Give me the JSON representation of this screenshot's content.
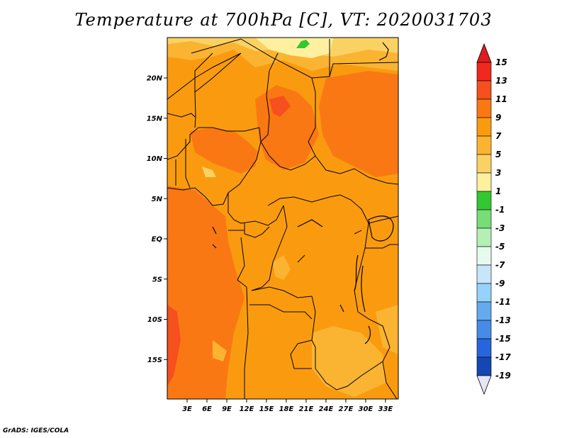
{
  "title": "Temperature at 700hPa [C], VT: 2020031703",
  "footer": "GrADS: IGES/COLA",
  "map": {
    "y_ticks": [
      {
        "label": "20N",
        "lat": 20
      },
      {
        "label": "15N",
        "lat": 15
      },
      {
        "label": "10N",
        "lat": 10
      },
      {
        "label": "5N",
        "lat": 5
      },
      {
        "label": "EQ",
        "lat": 0
      },
      {
        "label": "5S",
        "lat": -5
      },
      {
        "label": "10S",
        "lat": -10
      },
      {
        "label": "15S",
        "lat": -15
      }
    ],
    "x_ticks": [
      {
        "label": "3E",
        "lon": 3
      },
      {
        "label": "6E",
        "lon": 6
      },
      {
        "label": "9E",
        "lon": 9
      },
      {
        "label": "12E",
        "lon": 12
      },
      {
        "label": "15E",
        "lon": 15
      },
      {
        "label": "18E",
        "lon": 18
      },
      {
        "label": "21E",
        "lon": 21
      },
      {
        "label": "24E",
        "lon": 24
      },
      {
        "label": "27E",
        "lon": 27
      },
      {
        "label": "30E",
        "lon": 30
      },
      {
        "label": "33E",
        "lon": 33
      }
    ]
  },
  "colorbar": {
    "levels": [
      {
        "label": "15",
        "color": "#f0281e"
      },
      {
        "label": "13",
        "color": "#f5501e"
      },
      {
        "label": "11",
        "color": "#fa7814"
      },
      {
        "label": "9",
        "color": "#fa9b0f"
      },
      {
        "label": "7",
        "color": "#fab432"
      },
      {
        "label": "5",
        "color": "#fad264"
      },
      {
        "label": "3",
        "color": "#fff0a0"
      },
      {
        "label": "1",
        "color": "#32c832"
      },
      {
        "label": "-1",
        "color": "#78dc78"
      },
      {
        "label": "-3",
        "color": "#b4f0b4"
      },
      {
        "label": "-5",
        "color": "#e6faf0"
      },
      {
        "label": "-7",
        "color": "#c8e6fa"
      },
      {
        "label": "-9",
        "color": "#96d2fa"
      },
      {
        "label": "-11",
        "color": "#64aaf0"
      },
      {
        "label": "-13",
        "color": "#468ce6"
      },
      {
        "label": "-15",
        "color": "#2864dc"
      },
      {
        "label": "-17",
        "color": "#1446b4"
      },
      {
        "label": "-19",
        "color": "#0a2890"
      }
    ],
    "top_color": "#dc1e1e",
    "bottom_color": "#e6e6fa"
  }
}
